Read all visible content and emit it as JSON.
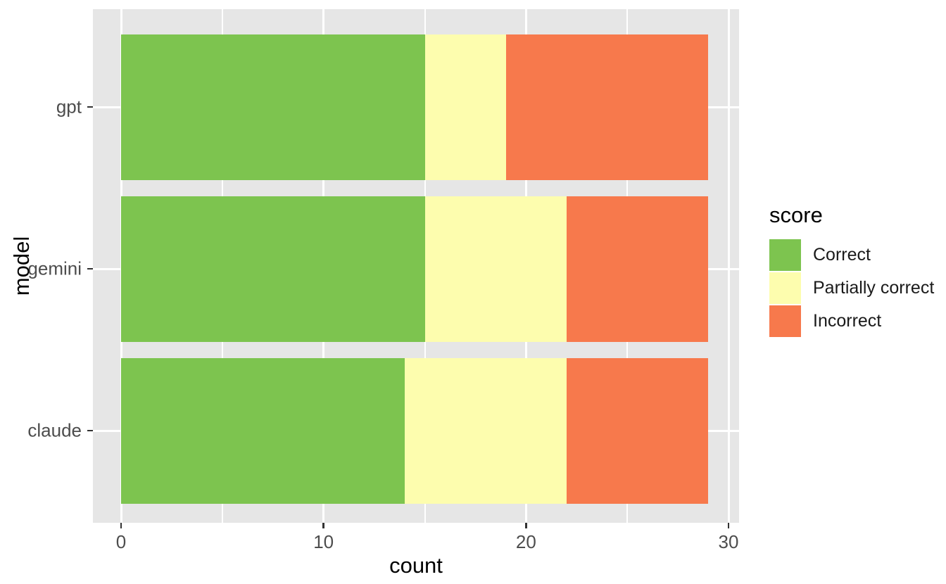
{
  "chart_data": {
    "type": "bar",
    "orientation": "horizontal",
    "stacked": true,
    "title": "",
    "xlabel": "count",
    "ylabel": "model",
    "categories": [
      "gpt",
      "gemini",
      "claude"
    ],
    "series": [
      {
        "name": "Correct",
        "color": "#7DC44F",
        "values": [
          15,
          15,
          14
        ]
      },
      {
        "name": "Partially correct",
        "color": "#FDFDAE",
        "values": [
          4,
          7,
          8
        ]
      },
      {
        "name": "Incorrect",
        "color": "#F7794C",
        "values": [
          10,
          7,
          7
        ]
      }
    ],
    "totals": [
      29,
      29,
      29
    ],
    "xlim": [
      0,
      30
    ],
    "x_ticks": [
      0,
      10,
      20,
      30
    ],
    "x_minor_ticks": [
      5,
      15,
      25
    ],
    "grid": true,
    "legend_title": "score",
    "legend_position": "right",
    "panel_background": "#E6E6E6",
    "gridline_color": "#FFFFFF",
    "tick_color": "#333333",
    "tick_label_color": "#4D4D4D",
    "axis_title_color": "#000000"
  }
}
